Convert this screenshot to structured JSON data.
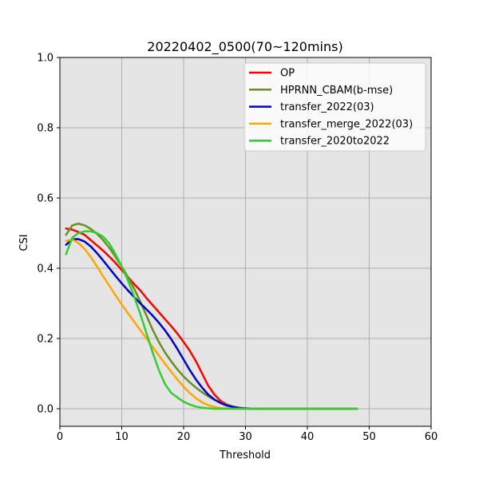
{
  "chart_data": {
    "type": "line",
    "title": "20220402_0500(70~120mins)",
    "xlabel": "Threshold",
    "ylabel": "CSI",
    "xlim": [
      0,
      60
    ],
    "ylim": [
      -0.05,
      1.0
    ],
    "xticks": [
      0,
      10,
      20,
      30,
      40,
      50,
      60
    ],
    "yticks": [
      0.0,
      0.2,
      0.4,
      0.6,
      0.8,
      1.0
    ],
    "xtick_labels": [
      "0",
      "10",
      "20",
      "30",
      "40",
      "50",
      "60"
    ],
    "ytick_labels": [
      "0.0",
      "0.2",
      "0.4",
      "0.6",
      "0.8",
      "1.0"
    ],
    "grid": true,
    "background": "#e5e5e5",
    "legend_position": "top-right",
    "series": [
      {
        "name": "OP",
        "color": "#ff0000",
        "points": [
          [
            1,
            0.513
          ],
          [
            2,
            0.51
          ],
          [
            3,
            0.503
          ],
          [
            4,
            0.495
          ],
          [
            5,
            0.48
          ],
          [
            6,
            0.465
          ],
          [
            7,
            0.45
          ],
          [
            8,
            0.433
          ],
          [
            9,
            0.415
          ],
          [
            10,
            0.395
          ],
          [
            11,
            0.375
          ],
          [
            12,
            0.355
          ],
          [
            13,
            0.337
          ],
          [
            14,
            0.315
          ],
          [
            15,
            0.295
          ],
          [
            16,
            0.275
          ],
          [
            17,
            0.255
          ],
          [
            18,
            0.235
          ],
          [
            19,
            0.214
          ],
          [
            20,
            0.19
          ],
          [
            21,
            0.165
          ],
          [
            22,
            0.135
          ],
          [
            23,
            0.1
          ],
          [
            24,
            0.065
          ],
          [
            25,
            0.04
          ],
          [
            26,
            0.022
          ],
          [
            27,
            0.012
          ],
          [
            28,
            0.006
          ],
          [
            29,
            0.003
          ],
          [
            30,
            0.001
          ],
          [
            31,
            0.0005
          ],
          [
            32,
            0
          ],
          [
            35,
            0
          ],
          [
            40,
            0
          ],
          [
            45,
            0
          ],
          [
            48,
            0
          ]
        ]
      },
      {
        "name": "HPRNN_CBAM(b-mse)",
        "color": "#6b8e23",
        "points": [
          [
            1,
            0.495
          ],
          [
            2,
            0.522
          ],
          [
            3,
            0.527
          ],
          [
            4,
            0.522
          ],
          [
            5,
            0.512
          ],
          [
            6,
            0.498
          ],
          [
            7,
            0.48
          ],
          [
            8,
            0.458
          ],
          [
            9,
            0.432
          ],
          [
            10,
            0.405
          ],
          [
            11,
            0.375
          ],
          [
            12,
            0.342
          ],
          [
            13,
            0.305
          ],
          [
            14,
            0.265
          ],
          [
            15,
            0.225
          ],
          [
            16,
            0.19
          ],
          [
            17,
            0.16
          ],
          [
            18,
            0.135
          ],
          [
            19,
            0.112
          ],
          [
            20,
            0.092
          ],
          [
            21,
            0.075
          ],
          [
            22,
            0.06
          ],
          [
            23,
            0.047
          ],
          [
            24,
            0.035
          ],
          [
            25,
            0.025
          ],
          [
            26,
            0.017
          ],
          [
            27,
            0.011
          ],
          [
            28,
            0.006
          ],
          [
            29,
            0.003
          ],
          [
            30,
            0.001
          ],
          [
            31,
            0
          ],
          [
            35,
            0
          ],
          [
            40,
            0
          ],
          [
            45,
            0
          ],
          [
            48,
            0
          ]
        ]
      },
      {
        "name": "transfer_2022(03)",
        "color": "#0000cd",
        "points": [
          [
            1,
            0.467
          ],
          [
            2,
            0.482
          ],
          [
            3,
            0.483
          ],
          [
            4,
            0.476
          ],
          [
            5,
            0.462
          ],
          [
            6,
            0.443
          ],
          [
            7,
            0.422
          ],
          [
            8,
            0.4
          ],
          [
            9,
            0.378
          ],
          [
            10,
            0.357
          ],
          [
            11,
            0.337
          ],
          [
            12,
            0.318
          ],
          [
            13,
            0.3
          ],
          [
            14,
            0.283
          ],
          [
            15,
            0.265
          ],
          [
            16,
            0.245
          ],
          [
            17,
            0.223
          ],
          [
            18,
            0.198
          ],
          [
            19,
            0.17
          ],
          [
            20,
            0.14
          ],
          [
            21,
            0.11
          ],
          [
            22,
            0.083
          ],
          [
            23,
            0.06
          ],
          [
            24,
            0.04
          ],
          [
            25,
            0.026
          ],
          [
            26,
            0.016
          ],
          [
            27,
            0.009
          ],
          [
            28,
            0.005
          ],
          [
            29,
            0.002
          ],
          [
            30,
            0.001
          ],
          [
            31,
            0
          ],
          [
            35,
            0
          ],
          [
            40,
            0
          ],
          [
            45,
            0
          ],
          [
            48,
            0
          ]
        ]
      },
      {
        "name": "transfer_merge_2022(03)",
        "color": "#ffa500",
        "points": [
          [
            1,
            0.478
          ],
          [
            2,
            0.482
          ],
          [
            3,
            0.472
          ],
          [
            4,
            0.455
          ],
          [
            5,
            0.432
          ],
          [
            6,
            0.405
          ],
          [
            7,
            0.377
          ],
          [
            8,
            0.35
          ],
          [
            9,
            0.323
          ],
          [
            10,
            0.297
          ],
          [
            11,
            0.272
          ],
          [
            12,
            0.248
          ],
          [
            13,
            0.224
          ],
          [
            14,
            0.2
          ],
          [
            15,
            0.176
          ],
          [
            16,
            0.152
          ],
          [
            17,
            0.128
          ],
          [
            18,
            0.105
          ],
          [
            19,
            0.083
          ],
          [
            20,
            0.063
          ],
          [
            21,
            0.045
          ],
          [
            22,
            0.03
          ],
          [
            23,
            0.018
          ],
          [
            24,
            0.01
          ],
          [
            25,
            0.005
          ],
          [
            26,
            0.002
          ],
          [
            27,
            0.001
          ],
          [
            28,
            0
          ],
          [
            30,
            0
          ],
          [
            35,
            0
          ],
          [
            40,
            0
          ],
          [
            45,
            0
          ],
          [
            48,
            0
          ]
        ]
      },
      {
        "name": "transfer_2020to2022",
        "color": "#32cd32",
        "points": [
          [
            1,
            0.44
          ],
          [
            2,
            0.487
          ],
          [
            3,
            0.5
          ],
          [
            4,
            0.505
          ],
          [
            5,
            0.505
          ],
          [
            6,
            0.5
          ],
          [
            7,
            0.49
          ],
          [
            8,
            0.47
          ],
          [
            9,
            0.44
          ],
          [
            10,
            0.405
          ],
          [
            11,
            0.365
          ],
          [
            12,
            0.32
          ],
          [
            13,
            0.27
          ],
          [
            14,
            0.215
          ],
          [
            15,
            0.16
          ],
          [
            16,
            0.11
          ],
          [
            17,
            0.07
          ],
          [
            18,
            0.045
          ],
          [
            19,
            0.032
          ],
          [
            20,
            0.02
          ],
          [
            21,
            0.012
          ],
          [
            22,
            0.006
          ],
          [
            23,
            0.003
          ],
          [
            24,
            0.001
          ],
          [
            25,
            0
          ],
          [
            30,
            0
          ],
          [
            35,
            0
          ],
          [
            40,
            0
          ],
          [
            45,
            0
          ],
          [
            48,
            0
          ]
        ]
      }
    ]
  }
}
